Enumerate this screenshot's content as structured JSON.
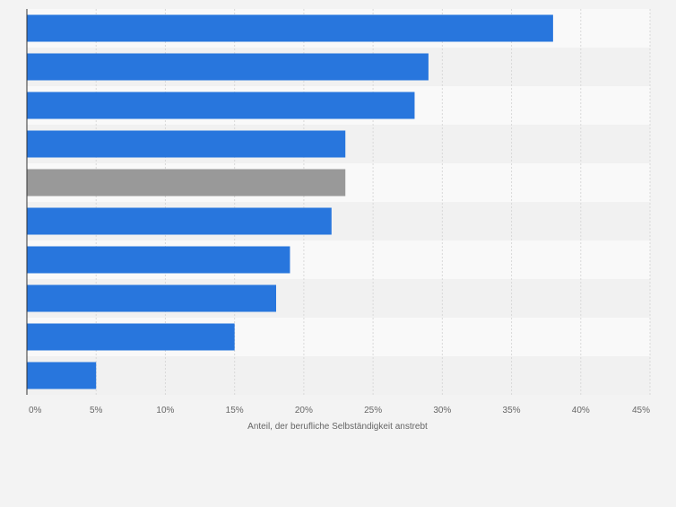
{
  "chart_data": {
    "type": "bar",
    "orientation": "horizontal",
    "xlabel": "Anteil, der berufliche Selbständigkeit anstrebt",
    "xlim": [
      0,
      45
    ],
    "ticks": [
      0,
      5,
      10,
      15,
      20,
      25,
      30,
      35,
      40,
      45
    ],
    "tick_labels": [
      "0%",
      "5%",
      "10%",
      "15%",
      "20%",
      "25%",
      "30%",
      "35%",
      "40%",
      "45%"
    ],
    "values": [
      38,
      29,
      28,
      23,
      23,
      22,
      19,
      18,
      15,
      5
    ],
    "highlight_index": 4,
    "grid": true,
    "colors": {
      "bar": "#2876dd",
      "highlight": "#999999",
      "grid": "#d9d9d9",
      "band_light": "#f9f9f9",
      "band_dark": "#f1f1f1",
      "axis_text": "#666666"
    }
  }
}
